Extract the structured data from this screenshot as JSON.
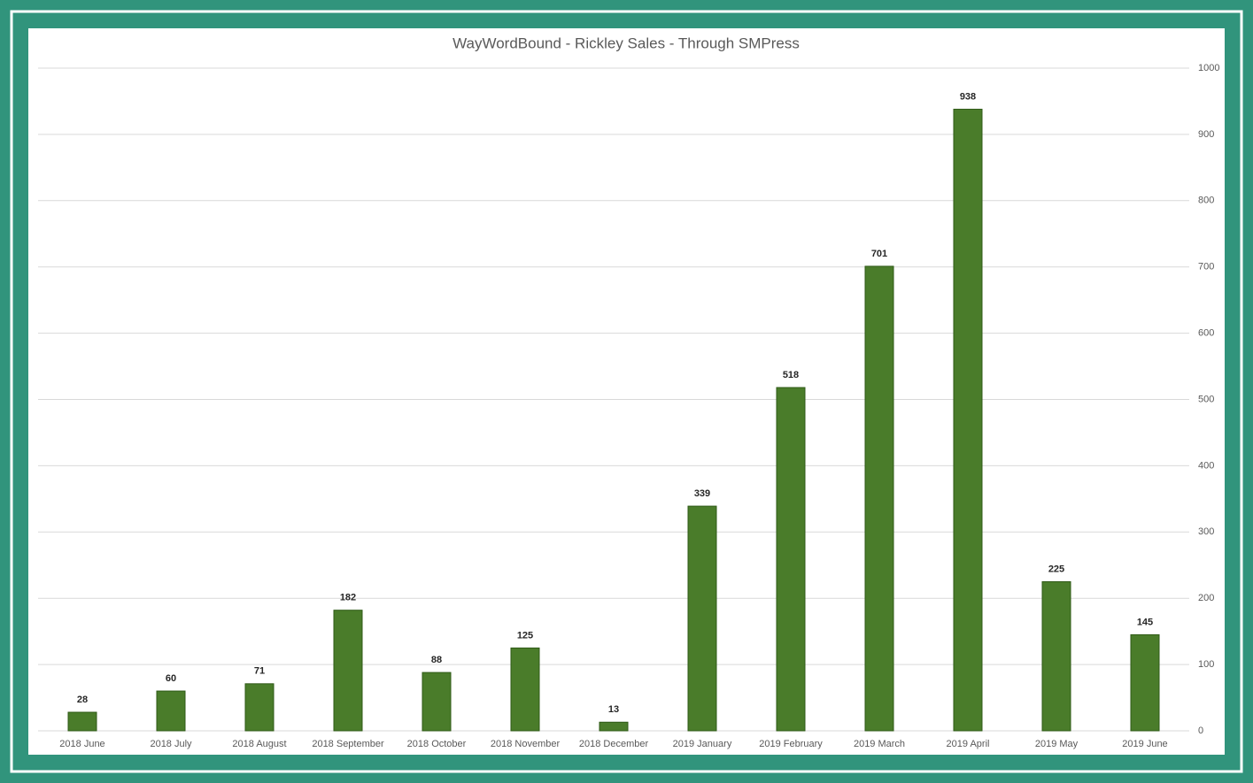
{
  "chart_data": {
    "type": "bar",
    "title": "WayWordBound - Rickley Sales - Through SMPress",
    "categories": [
      "2018 June",
      "2018 July",
      "2018 August",
      "2018 September",
      "2018 October",
      "2018 November",
      "2018 December",
      "2019 January",
      "2019 February",
      "2019 March",
      "2019 April",
      "2019 May",
      "2019 June"
    ],
    "values": [
      28,
      60,
      71,
      182,
      88,
      125,
      13,
      339,
      518,
      701,
      938,
      225,
      145
    ],
    "color": "#4a7c2a",
    "ylim": [
      0,
      1000
    ],
    "yticks": [
      0,
      100,
      200,
      300,
      400,
      500,
      600,
      700,
      800,
      900,
      1000
    ],
    "grid": true
  }
}
